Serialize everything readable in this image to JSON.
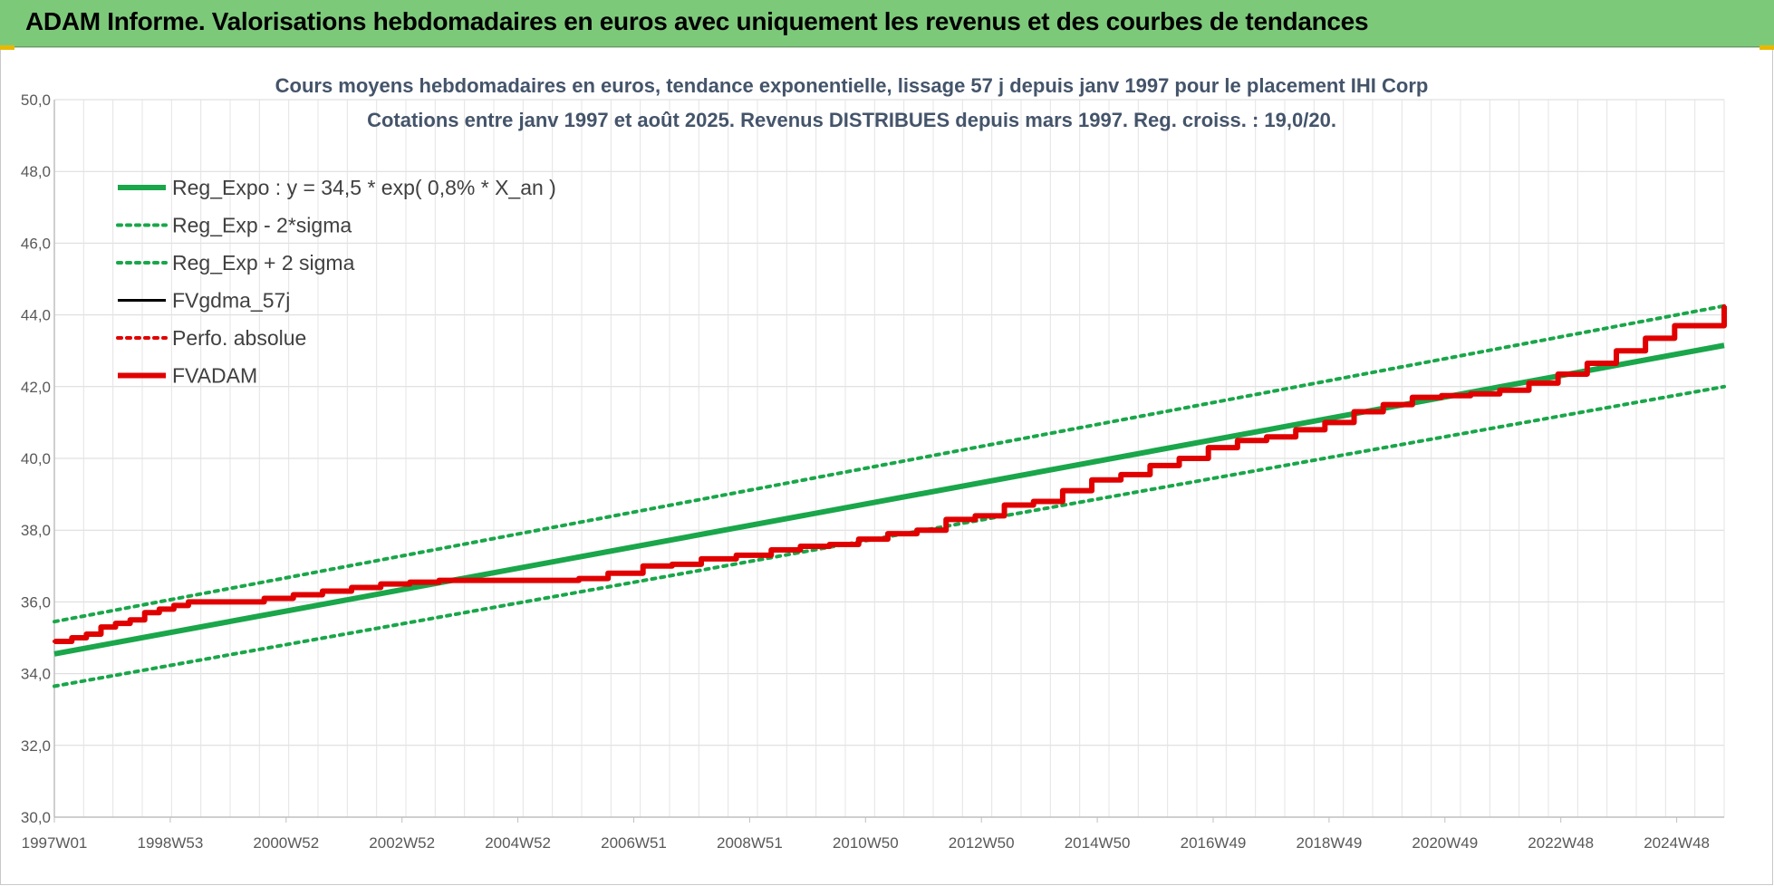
{
  "banner": {
    "title": "ADAM Informe. Valorisations hebdomadaires en euros avec uniquement les revenus et des courbes de tendances"
  },
  "chart_data": {
    "type": "line",
    "title": "Cours moyens hebdomadaires en euros, tendance exponentielle, lissage 57 j depuis janv 1997 pour le placement IHI Corp",
    "subtitle": "Cotations entre janv 1997 et août 2025.  Revenus DISTRIBUES depuis mars 1997. Reg. croiss. : 19,0/20.",
    "x_tick_labels": [
      "1997W01",
      "1998W53",
      "2000W52",
      "2002W52",
      "2004W52",
      "2006W51",
      "2008W51",
      "2010W50",
      "2012W50",
      "2014W50",
      "2016W49",
      "2018W49",
      "2020W49",
      "2022W48",
      "2024W48"
    ],
    "x_range": [
      1997.0,
      2025.65
    ],
    "ylim": [
      30,
      50
    ],
    "y_ticks": [
      "30,0",
      "32,0",
      "34,0",
      "36,0",
      "38,0",
      "40,0",
      "42,0",
      "44,0",
      "46,0",
      "48,0",
      "50,0"
    ],
    "grid": true,
    "legend_position": "top-left",
    "series": [
      {
        "name": "Reg_Expo : y = 34,5 * exp( 0,8% *  X_an )",
        "style": "solid-thick",
        "color": "#1aa64a",
        "x": [
          1997.0,
          2025.65
        ],
        "values": [
          34.55,
          43.15
        ]
      },
      {
        "name": "Reg_Exp - 2*sigma",
        "style": "dotted",
        "color": "#1aa64a",
        "x": [
          1997.0,
          2025.65
        ],
        "values": [
          33.65,
          42.0
        ]
      },
      {
        "name": "Reg_Exp + 2 sigma",
        "style": "dotted",
        "color": "#1aa64a",
        "x": [
          1997.0,
          2025.65
        ],
        "values": [
          35.45,
          44.25
        ]
      },
      {
        "name": "FVgdma_57j",
        "style": "solid",
        "color": "#000000",
        "x": [
          1997.0,
          1997.3,
          1997.55,
          1997.8,
          1998.05,
          1998.3,
          1998.55,
          1998.8,
          1999.05,
          1999.3,
          1999.6,
          2000.1,
          2000.6,
          2001.1,
          2001.6,
          2002.1,
          2002.6,
          2003.1,
          2003.6,
          2004.5,
          2005.5,
          2006.0,
          2006.5,
          2007.1,
          2007.6,
          2008.1,
          2008.7,
          2009.3,
          2009.8,
          2010.3,
          2010.8,
          2011.3,
          2011.8,
          2012.3,
          2012.8,
          2013.3,
          2013.8,
          2014.3,
          2014.8,
          2015.3,
          2015.8,
          2016.3,
          2016.8,
          2017.3,
          2017.8,
          2018.3,
          2018.8,
          2019.3,
          2019.8,
          2020.3,
          2020.8,
          2021.3,
          2021.8,
          2022.3,
          2022.8,
          2023.3,
          2023.8,
          2024.3,
          2024.8,
          2025.65
        ],
        "values": [
          34.9,
          35.0,
          35.1,
          35.3,
          35.4,
          35.5,
          35.7,
          35.8,
          35.9,
          36.0,
          36.0,
          36.0,
          36.1,
          36.2,
          36.3,
          36.4,
          36.5,
          36.55,
          36.6,
          36.6,
          36.6,
          36.65,
          36.8,
          37.0,
          37.05,
          37.2,
          37.3,
          37.45,
          37.55,
          37.6,
          37.75,
          37.9,
          38.0,
          38.3,
          38.4,
          38.7,
          38.8,
          39.1,
          39.4,
          39.55,
          39.8,
          40.0,
          40.3,
          40.5,
          40.6,
          40.8,
          41.0,
          41.3,
          41.5,
          41.7,
          41.75,
          41.8,
          41.9,
          42.1,
          42.35,
          42.65,
          43.0,
          43.35,
          43.7,
          44.25
        ]
      },
      {
        "name": "Perfo. absolue",
        "style": "dotted",
        "color": "#e00000",
        "x": [
          1997.0,
          1997.3,
          1997.55,
          1997.8,
          1998.05,
          1998.3,
          1998.55,
          1998.8,
          1999.05,
          1999.3,
          1999.6,
          2000.1,
          2000.6,
          2001.1,
          2001.6,
          2002.1,
          2002.6,
          2003.1,
          2003.6,
          2004.5,
          2005.5,
          2006.0,
          2006.5,
          2007.1,
          2007.6,
          2008.1,
          2008.7,
          2009.3,
          2009.8,
          2010.3,
          2010.8,
          2011.3,
          2011.8,
          2012.3,
          2012.8,
          2013.3,
          2013.8,
          2014.3,
          2014.8,
          2015.3,
          2015.8,
          2016.3,
          2016.8,
          2017.3,
          2017.8,
          2018.3,
          2018.8,
          2019.3,
          2019.8,
          2020.3,
          2020.8,
          2021.3,
          2021.8,
          2022.3,
          2022.8,
          2023.3,
          2023.8,
          2024.3,
          2024.8,
          2025.65
        ],
        "values": [
          34.9,
          35.0,
          35.1,
          35.3,
          35.4,
          35.5,
          35.7,
          35.8,
          35.9,
          36.0,
          36.0,
          36.0,
          36.1,
          36.2,
          36.3,
          36.4,
          36.5,
          36.55,
          36.6,
          36.6,
          36.6,
          36.65,
          36.8,
          37.0,
          37.05,
          37.2,
          37.3,
          37.45,
          37.55,
          37.6,
          37.75,
          37.9,
          38.0,
          38.3,
          38.4,
          38.7,
          38.8,
          39.1,
          39.4,
          39.55,
          39.8,
          40.0,
          40.3,
          40.5,
          40.6,
          40.8,
          41.0,
          41.3,
          41.5,
          41.7,
          41.75,
          41.8,
          41.9,
          42.1,
          42.35,
          42.65,
          43.0,
          43.35,
          43.7,
          44.25
        ]
      },
      {
        "name": "FVADAM",
        "style": "solid-thick",
        "color": "#e00000",
        "x": [
          1997.0,
          1997.3,
          1997.55,
          1997.8,
          1998.05,
          1998.3,
          1998.55,
          1998.8,
          1999.05,
          1999.3,
          1999.6,
          2000.1,
          2000.6,
          2001.1,
          2001.6,
          2002.1,
          2002.6,
          2003.1,
          2003.6,
          2004.5,
          2005.5,
          2006.0,
          2006.5,
          2007.1,
          2007.6,
          2008.1,
          2008.7,
          2009.3,
          2009.8,
          2010.3,
          2010.8,
          2011.3,
          2011.8,
          2012.3,
          2012.8,
          2013.3,
          2013.8,
          2014.3,
          2014.8,
          2015.3,
          2015.8,
          2016.3,
          2016.8,
          2017.3,
          2017.8,
          2018.3,
          2018.8,
          2019.3,
          2019.8,
          2020.3,
          2020.8,
          2021.3,
          2021.8,
          2022.3,
          2022.8,
          2023.3,
          2023.8,
          2024.3,
          2024.8,
          2025.65
        ],
        "values": [
          34.9,
          35.0,
          35.1,
          35.3,
          35.4,
          35.5,
          35.7,
          35.8,
          35.9,
          36.0,
          36.0,
          36.0,
          36.1,
          36.2,
          36.3,
          36.4,
          36.5,
          36.55,
          36.6,
          36.6,
          36.6,
          36.65,
          36.8,
          37.0,
          37.05,
          37.2,
          37.3,
          37.45,
          37.55,
          37.6,
          37.75,
          37.9,
          38.0,
          38.3,
          38.4,
          38.7,
          38.8,
          39.1,
          39.4,
          39.55,
          39.8,
          40.0,
          40.3,
          40.5,
          40.6,
          40.8,
          41.0,
          41.3,
          41.5,
          41.7,
          41.75,
          41.8,
          41.9,
          42.1,
          42.35,
          42.65,
          43.0,
          43.35,
          43.7,
          44.25
        ]
      }
    ]
  }
}
